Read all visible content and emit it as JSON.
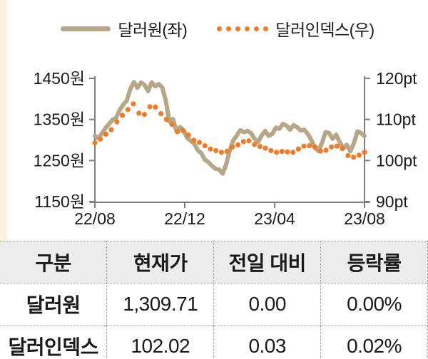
{
  "legend": {
    "series1_label": "달러원(좌)",
    "series2_label": "달러인덱스(우)"
  },
  "chart_data": {
    "type": "line",
    "title": "",
    "legend_position": "top",
    "grid": false,
    "x_axis": {
      "tick_labels": [
        "22/08",
        "22/12",
        "23/04",
        "23/08"
      ]
    },
    "y_axis_left": {
      "tick_labels": [
        "1450원",
        "1350원",
        "1250원",
        "1150원"
      ],
      "min": 1150,
      "max": 1450,
      "unit": "원"
    },
    "y_axis_right": {
      "tick_labels": [
        "120pt",
        "110pt",
        "100pt",
        "90pt"
      ],
      "min": 90,
      "max": 120,
      "unit": "pt"
    },
    "series": [
      {
        "name": "달러원(좌)",
        "axis": "left",
        "style": "solid-line",
        "color": "#b7a687",
        "values": [
          1310,
          1304,
          1316,
          1329,
          1339,
          1349,
          1354,
          1373,
          1386,
          1396,
          1424,
          1441,
          1427,
          1440,
          1434,
          1419,
          1440,
          1431,
          1436,
          1428,
          1395,
          1345,
          1351,
          1322,
          1331,
          1324,
          1305,
          1298,
          1291,
          1275,
          1268,
          1252,
          1246,
          1237,
          1230,
          1228,
          1218,
          1240,
          1274,
          1299,
          1311,
          1324,
          1319,
          1322,
          1317,
          1303,
          1295,
          1311,
          1322,
          1310,
          1315,
          1330,
          1327,
          1339,
          1335,
          1325,
          1336,
          1331,
          1323,
          1325,
          1315,
          1300,
          1281,
          1273,
          1292,
          1319,
          1317,
          1303,
          1313,
          1295,
          1280,
          1288,
          1273,
          1292,
          1321,
          1317,
          1310
        ]
      },
      {
        "name": "달러인덱스(우)",
        "axis": "right",
        "style": "dotted",
        "color": "#ee7c28",
        "values": [
          104.3,
          105.2,
          106.4,
          107.5,
          109.4,
          111.0,
          112.4,
          113.8,
          111.5,
          111.2,
          113.1,
          113.0,
          111.4,
          110.0,
          108.8,
          107.0,
          107.3,
          106.2,
          104.9,
          104.4,
          103.6,
          102.8,
          102.4,
          102.0,
          102.2,
          103.3,
          103.8,
          104.6,
          104.8,
          103.9,
          103.4,
          103.0,
          102.4,
          102.0,
          102.2,
          102.1,
          102.0,
          102.8,
          103.5,
          103.6,
          103.3,
          102.3,
          102.5,
          103.3,
          103.5,
          102.9,
          101.2,
          100.8,
          101.3,
          102.0
        ]
      }
    ]
  },
  "table": {
    "headers": [
      "구분",
      "현재가",
      "전일 대비",
      "등락률"
    ],
    "rows": [
      {
        "label": "달러원",
        "cells": [
          "1,309.71",
          "0.00",
          "0.00%"
        ]
      },
      {
        "label": "달러인덱스",
        "cells": [
          "102.02",
          "0.03",
          "0.02%"
        ]
      }
    ]
  },
  "colors": {
    "usdkrw_line": "#b7a687",
    "dollar_index_dots": "#ee7c28",
    "axis": "#7f7f7f",
    "text": "#1a1a1a",
    "table_header_bg": "#ececec",
    "accent_strip": "#fbf0db",
    "table_border": "#9a9a9a"
  }
}
